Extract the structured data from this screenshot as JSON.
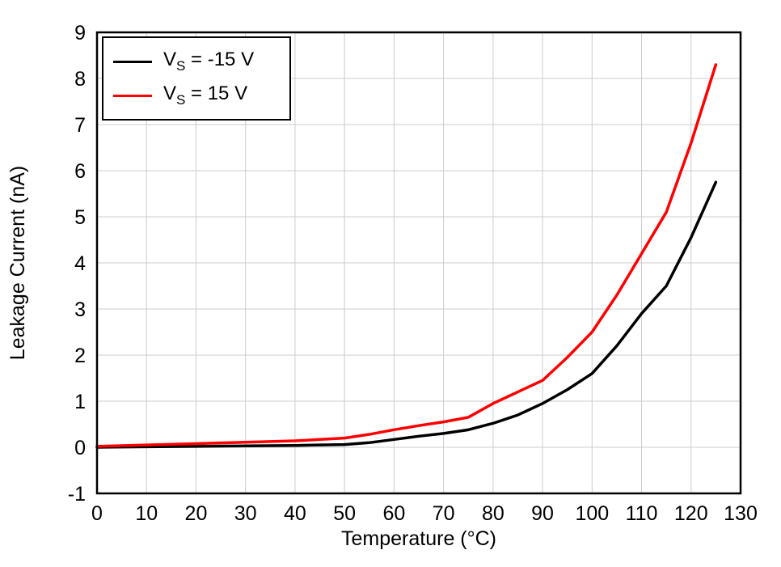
{
  "chart_data": {
    "type": "line",
    "title": "",
    "xlabel": "Temperature (°C)",
    "ylabel": "Leakage Current (nA)",
    "xlim": [
      0,
      130
    ],
    "ylim": [
      -1,
      9
    ],
    "xticks": [
      0,
      10,
      20,
      30,
      40,
      50,
      60,
      70,
      80,
      90,
      100,
      110,
      120,
      130
    ],
    "yticks": [
      -1,
      0,
      1,
      2,
      3,
      4,
      5,
      6,
      7,
      8,
      9
    ],
    "grid": true,
    "grid_color": "#cccccc",
    "legend_position": "top-left",
    "x": [
      0,
      10,
      20,
      30,
      40,
      50,
      55,
      60,
      65,
      70,
      75,
      80,
      85,
      90,
      95,
      100,
      105,
      110,
      115,
      120,
      125
    ],
    "series": [
      {
        "name": "VS = -15 V",
        "label_main": "V",
        "label_sub": "S",
        "label_rest": " = -15 V",
        "color": "#000000",
        "values": [
          0,
          0.01,
          0.02,
          0.03,
          0.04,
          0.06,
          0.1,
          0.17,
          0.24,
          0.3,
          0.38,
          0.52,
          0.7,
          0.95,
          1.25,
          1.6,
          2.2,
          2.9,
          3.5,
          4.55,
          5.75
        ]
      },
      {
        "name": "VS = 15 V",
        "label_main": "V",
        "label_sub": "S",
        "label_rest": " = 15 V",
        "color": "#ff0000",
        "values": [
          0.02,
          0.05,
          0.08,
          0.11,
          0.14,
          0.2,
          0.28,
          0.38,
          0.47,
          0.55,
          0.65,
          0.95,
          1.2,
          1.45,
          1.95,
          2.5,
          3.3,
          4.2,
          5.1,
          6.6,
          8.3
        ]
      }
    ]
  }
}
